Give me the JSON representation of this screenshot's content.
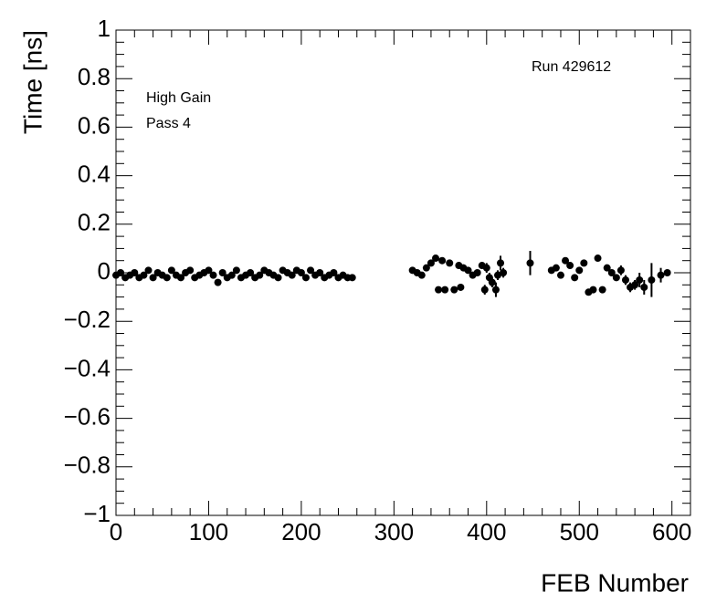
{
  "chart_data": {
    "type": "scatter",
    "annotations": [
      "Run 429612",
      "High Gain",
      "Pass 4"
    ],
    "x_label": "FEB Number",
    "y_label": "Time [ns]",
    "color": "#000000",
    "x": [
      0,
      5,
      10,
      15,
      20,
      25,
      30,
      35,
      40,
      45,
      50,
      55,
      60,
      65,
      70,
      75,
      80,
      85,
      90,
      95,
      100,
      105,
      110,
      115,
      120,
      125,
      130,
      135,
      140,
      145,
      150,
      155,
      160,
      165,
      170,
      175,
      180,
      185,
      190,
      195,
      200,
      205,
      210,
      215,
      220,
      225,
      230,
      235,
      240,
      245,
      250,
      255,
      320,
      325,
      330,
      335,
      340,
      345,
      348,
      352,
      355,
      360,
      365,
      370,
      372,
      375,
      380,
      385,
      390,
      395,
      398,
      400,
      403,
      406,
      410,
      412,
      415,
      418,
      447,
      470,
      475,
      480,
      485,
      490,
      495,
      500,
      505,
      510,
      515,
      520,
      525,
      530,
      535,
      540,
      545,
      550,
      555,
      560,
      565,
      570,
      578,
      588,
      595
    ],
    "values": [
      -0.01,
      0,
      -0.02,
      -0.01,
      0,
      -0.02,
      -0.01,
      0.01,
      -0.02,
      0,
      -0.01,
      -0.02,
      0.01,
      -0.01,
      -0.02,
      0,
      0.01,
      -0.02,
      -0.01,
      0,
      0.01,
      -0.01,
      -0.04,
      0,
      -0.02,
      -0.01,
      0.01,
      -0.02,
      -0.01,
      0,
      -0.02,
      -0.01,
      0.01,
      0,
      -0.01,
      -0.02,
      0.01,
      0,
      -0.01,
      0.01,
      0,
      -0.02,
      0.01,
      -0.01,
      0,
      -0.02,
      -0.01,
      0,
      -0.02,
      -0.01,
      -0.02,
      -0.02,
      0.01,
      0,
      -0.01,
      0.02,
      0.04,
      0.06,
      -0.07,
      0.05,
      -0.07,
      0.04,
      -0.07,
      0.03,
      -0.06,
      0.02,
      0.01,
      -0.01,
      0,
      0.03,
      -0.07,
      0.02,
      -0.02,
      -0.04,
      -0.07,
      -0.01,
      0.04,
      0,
      0.04,
      0.01,
      0.02,
      -0.01,
      0.05,
      0.03,
      -0.02,
      0.01,
      0.04,
      -0.08,
      -0.07,
      0.06,
      -0.07,
      0.02,
      0,
      -0.02,
      0.01,
      -0.03,
      -0.06,
      -0.05,
      -0.03,
      -0.06,
      -0.03,
      -0.01,
      0
    ],
    "errors": [
      0.01,
      0.01,
      0.01,
      0.01,
      0.01,
      0.01,
      0.01,
      0.01,
      0.01,
      0.01,
      0.01,
      0.01,
      0.01,
      0.01,
      0.01,
      0.01,
      0.01,
      0.01,
      0.01,
      0.01,
      0.01,
      0.01,
      0.01,
      0.01,
      0.01,
      0.01,
      0.01,
      0.01,
      0.01,
      0.01,
      0.01,
      0.01,
      0.01,
      0.01,
      0.01,
      0.01,
      0.01,
      0.01,
      0.01,
      0.01,
      0.01,
      0.01,
      0.01,
      0.01,
      0.01,
      0.01,
      0.01,
      0.01,
      0.01,
      0.01,
      0.01,
      0.01,
      0.01,
      0.01,
      0.01,
      0.01,
      0.01,
      0.01,
      0.01,
      0.01,
      0.01,
      0.01,
      0.01,
      0.01,
      0.01,
      0.01,
      0.01,
      0.01,
      0.01,
      0.01,
      0.02,
      0.02,
      0.02,
      0.02,
      0.03,
      0.02,
      0.03,
      0.02,
      0.05,
      0.01,
      0.01,
      0.01,
      0.01,
      0.01,
      0.01,
      0.01,
      0.01,
      0.01,
      0.01,
      0.01,
      0.01,
      0.01,
      0.01,
      0.01,
      0.02,
      0.02,
      0.02,
      0.02,
      0.03,
      0.03,
      0.07,
      0.03,
      0.01
    ],
    "xlim": [
      0,
      620
    ],
    "xticks": [
      0,
      100,
      200,
      300,
      400,
      500,
      600
    ],
    "ylim": [
      -1,
      1
    ],
    "yticks": [
      {
        "value": -1,
        "label": "−1"
      },
      {
        "value": -0.8,
        "label": "−0.8"
      },
      {
        "value": -0.6,
        "label": "−0.6"
      },
      {
        "value": -0.4,
        "label": "−0.4"
      },
      {
        "value": -0.2,
        "label": "−0.2"
      },
      0,
      0.2,
      0.4,
      0.6,
      0.8,
      1
    ]
  }
}
